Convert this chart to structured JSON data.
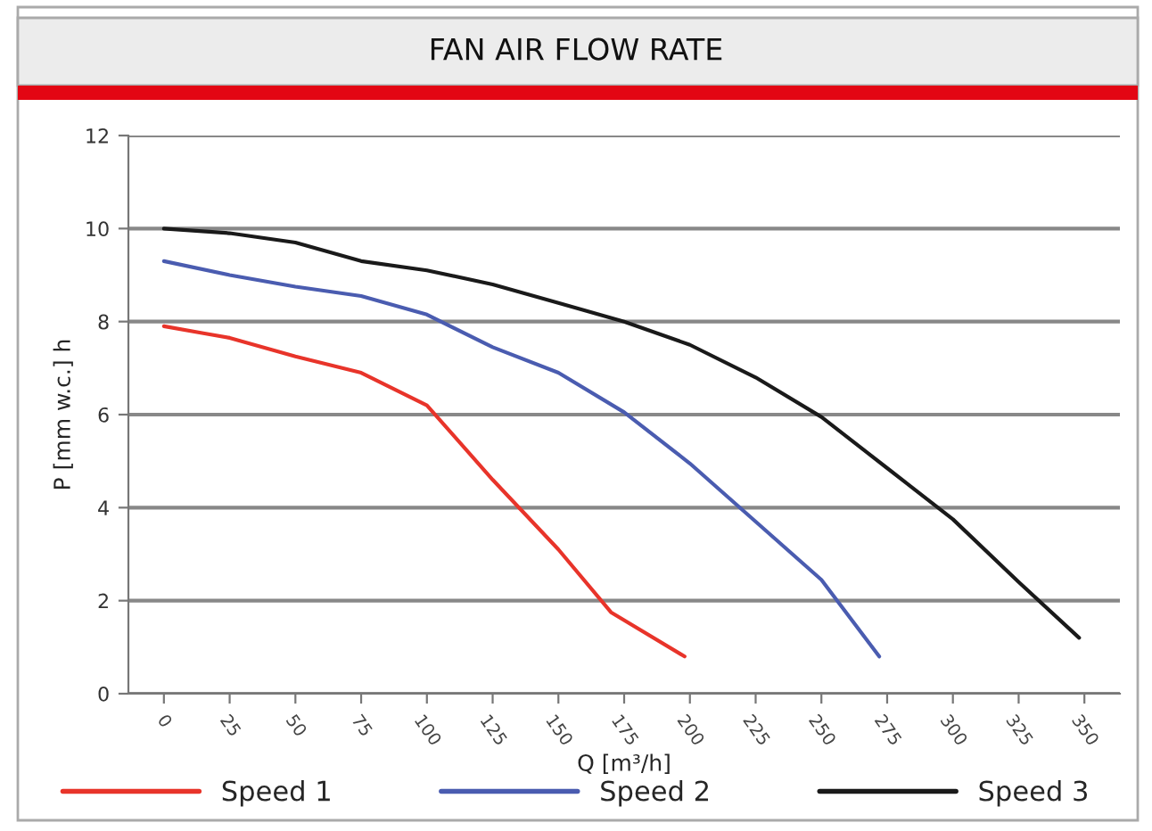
{
  "chart_data": {
    "type": "line",
    "title": "FAN AIR FLOW RATE",
    "xlabel": "Q [m³/h]",
    "ylabel": "P [mm w.c.] h",
    "xlim": [
      -13.5,
      363.5
    ],
    "xticks": [
      0,
      25,
      50,
      75,
      100,
      125,
      150,
      175,
      200,
      225,
      250,
      275,
      300,
      325,
      350
    ],
    "ylim": [
      0,
      12
    ],
    "yticks": [
      0,
      2,
      4,
      6,
      8,
      10,
      12
    ],
    "grid": "y",
    "legend": "bottom",
    "marker": "none",
    "line_style": "solid",
    "series": [
      {
        "name": "Speed 1",
        "color": "#e8342a",
        "x": [
          0,
          15,
          25,
          50,
          75,
          100,
          125,
          150,
          170,
          198
        ],
        "values": [
          7.9,
          7.75,
          7.65,
          7.25,
          6.9,
          6.2,
          4.6,
          3.1,
          1.75,
          0.8
        ]
      },
      {
        "name": "Speed 2",
        "color": "#4a5cb0",
        "x": [
          0,
          25,
          50,
          75,
          100,
          125,
          150,
          175,
          200,
          225,
          250,
          272
        ],
        "values": [
          9.3,
          9.0,
          8.75,
          8.55,
          8.15,
          7.45,
          6.9,
          6.05,
          4.95,
          3.7,
          2.45,
          0.8
        ]
      },
      {
        "name": "Speed 3",
        "color": "#1a1a1a",
        "x": [
          0,
          25,
          50,
          75,
          100,
          125,
          150,
          175,
          200,
          225,
          250,
          275,
          300,
          325,
          348
        ],
        "values": [
          10.0,
          9.9,
          9.7,
          9.3,
          9.1,
          8.8,
          8.4,
          8.0,
          7.5,
          6.8,
          5.95,
          4.85,
          3.75,
          2.4,
          1.2
        ]
      }
    ]
  }
}
